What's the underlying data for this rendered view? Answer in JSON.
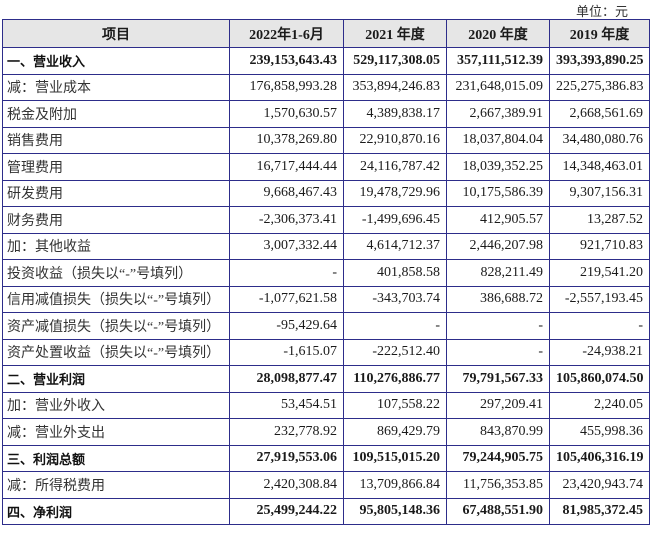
{
  "unit_label": "单位：元",
  "table": {
    "headers": [
      "项目",
      "2022年1-6月",
      "2021 年度",
      "2020 年度",
      "2019 年度"
    ],
    "rows": [
      {
        "label": "一、营业收入",
        "bold": true,
        "values": [
          "239,153,643.43",
          "529,117,308.05",
          "357,111,512.39",
          "393,393,890.25"
        ]
      },
      {
        "label": "减：营业成本",
        "bold": false,
        "values": [
          "176,858,993.28",
          "353,894,246.83",
          "231,648,015.09",
          "225,275,386.83"
        ]
      },
      {
        "label": "税金及附加",
        "bold": false,
        "values": [
          "1,570,630.57",
          "4,389,838.17",
          "2,667,389.91",
          "2,668,561.69"
        ]
      },
      {
        "label": "销售费用",
        "bold": false,
        "values": [
          "10,378,269.80",
          "22,910,870.16",
          "18,037,804.04",
          "34,480,080.76"
        ]
      },
      {
        "label": "管理费用",
        "bold": false,
        "values": [
          "16,717,444.44",
          "24,116,787.42",
          "18,039,352.25",
          "14,348,463.01"
        ]
      },
      {
        "label": "研发费用",
        "bold": false,
        "values": [
          "9,668,467.43",
          "19,478,729.96",
          "10,175,586.39",
          "9,307,156.31"
        ]
      },
      {
        "label": "财务费用",
        "bold": false,
        "values": [
          "-2,306,373.41",
          "-1,499,696.45",
          "412,905.57",
          "13,287.52"
        ]
      },
      {
        "label": "加：其他收益",
        "bold": false,
        "values": [
          "3,007,332.44",
          "4,614,712.37",
          "2,446,207.98",
          "921,710.83"
        ]
      },
      {
        "label": "投资收益（损失以“-”号填列）",
        "bold": false,
        "values": [
          "-",
          "401,858.58",
          "828,211.49",
          "219,541.20"
        ]
      },
      {
        "label": "信用减值损失（损失以“-”号填列）",
        "bold": false,
        "values": [
          "-1,077,621.58",
          "-343,703.74",
          "386,688.72",
          "-2,557,193.45"
        ]
      },
      {
        "label": "资产减值损失（损失以“-”号填列）",
        "bold": false,
        "values": [
          "-95,429.64",
          "-",
          "-",
          "-"
        ]
      },
      {
        "label": "资产处置收益（损失以“-”号填列）",
        "bold": false,
        "values": [
          "-1,615.07",
          "-222,512.40",
          "-",
          "-24,938.21"
        ]
      },
      {
        "label": "二、营业利润",
        "bold": true,
        "values": [
          "28,098,877.47",
          "110,276,886.77",
          "79,791,567.33",
          "105,860,074.50"
        ]
      },
      {
        "label": "加：营业外收入",
        "bold": false,
        "values": [
          "53,454.51",
          "107,558.22",
          "297,209.41",
          "2,240.05"
        ]
      },
      {
        "label": "减：营业外支出",
        "bold": false,
        "values": [
          "232,778.92",
          "869,429.79",
          "843,870.99",
          "455,998.36"
        ]
      },
      {
        "label": "三、利润总额",
        "bold": true,
        "values": [
          "27,919,553.06",
          "109,515,015.20",
          "79,244,905.75",
          "105,406,316.19"
        ]
      },
      {
        "label": "减：所得税费用",
        "bold": false,
        "values": [
          "2,420,308.84",
          "13,709,866.84",
          "11,756,353.85",
          "23,420,943.74"
        ]
      },
      {
        "label": "四、净利润",
        "bold": true,
        "values": [
          "25,499,244.22",
          "95,805,148.36",
          "67,488,551.90",
          "81,985,372.45"
        ]
      }
    ]
  },
  "colors": {
    "border": "#2d2d8a",
    "header_bg": "#e6e6e6"
  }
}
